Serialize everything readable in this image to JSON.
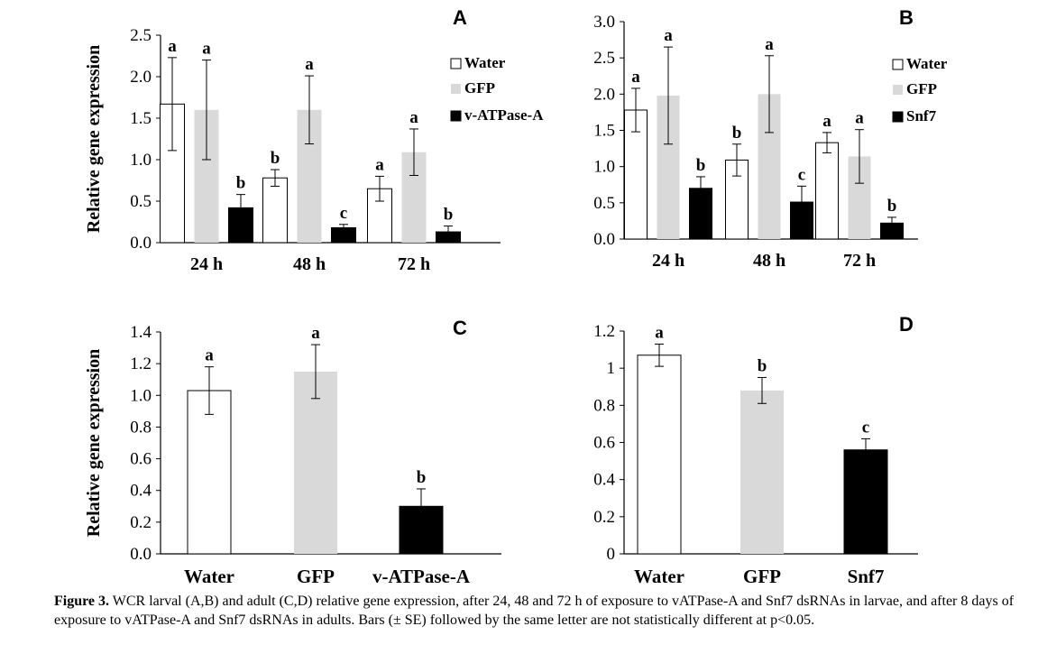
{
  "chart_data": [
    {
      "panel": "A",
      "type": "bar",
      "ylabel": "Relative gene expression",
      "ylim": [
        0,
        2.5
      ],
      "yticks": [
        "0.0",
        "0.5",
        "1.0",
        "1.5",
        "2.0",
        "2.5"
      ],
      "categories": [
        "24 h",
        "48 h",
        "72 h"
      ],
      "legend": "right",
      "series": [
        {
          "name": "Water",
          "color": "#ffffff",
          "values": [
            1.67,
            0.78,
            0.65
          ],
          "errors": [
            0.56,
            0.1,
            0.15
          ],
          "letters": [
            "a",
            "b",
            "a"
          ]
        },
        {
          "name": "GFP",
          "color": "#d9d9d9",
          "values": [
            1.6,
            1.6,
            1.09
          ],
          "errors": [
            0.6,
            0.41,
            0.28
          ],
          "letters": [
            "a",
            "a",
            "a"
          ]
        },
        {
          "name": "v-ATPase-A",
          "color": "#000000",
          "values": [
            0.42,
            0.18,
            0.13
          ],
          "errors": [
            0.16,
            0.04,
            0.07
          ],
          "letters": [
            "b",
            "c",
            "b"
          ]
        }
      ]
    },
    {
      "panel": "B",
      "type": "bar",
      "ylabel": "",
      "ylim": [
        0,
        3.0
      ],
      "yticks": [
        "0.0",
        "0.5",
        "1.0",
        "1.5",
        "2.0",
        "2.5",
        "3.0"
      ],
      "categories": [
        "24 h",
        "48 h",
        "72 h"
      ],
      "legend": "right",
      "series": [
        {
          "name": "Water",
          "color": "#ffffff",
          "values": [
            1.78,
            1.09,
            1.33
          ],
          "errors": [
            0.3,
            0.22,
            0.14
          ],
          "letters": [
            "a",
            "b",
            "a"
          ]
        },
        {
          "name": "GFP",
          "color": "#d9d9d9",
          "values": [
            1.98,
            2.0,
            1.14
          ],
          "errors": [
            0.67,
            0.53,
            0.37
          ],
          "letters": [
            "a",
            "a",
            "a"
          ]
        },
        {
          "name": "Snf7",
          "color": "#000000",
          "values": [
            0.7,
            0.51,
            0.22
          ],
          "errors": [
            0.16,
            0.22,
            0.08
          ],
          "letters": [
            "b",
            "c",
            "b"
          ]
        }
      ]
    },
    {
      "panel": "C",
      "type": "bar",
      "ylabel": "Relative gene expression",
      "ylim": [
        0,
        1.4
      ],
      "yticks": [
        "0.0",
        "0.2",
        "0.4",
        "0.6",
        "0.8",
        "1.0",
        "1.2",
        "1.4"
      ],
      "categories": [
        "Water",
        "GFP",
        "v-ATPase-A"
      ],
      "values": [
        1.03,
        1.15,
        0.3
      ],
      "errors": [
        0.15,
        0.17,
        0.11
      ],
      "letters": [
        "a",
        "a",
        "b"
      ],
      "colors": [
        "#ffffff",
        "#d9d9d9",
        "#000000"
      ]
    },
    {
      "panel": "D",
      "type": "bar",
      "ylabel": "",
      "ylim": [
        0,
        1.2
      ],
      "yticks": [
        "0",
        "0.2",
        "0.4",
        "0.6",
        "0.8",
        "1",
        "1.2"
      ],
      "categories": [
        "Water",
        "GFP",
        "Snf7"
      ],
      "values": [
        1.07,
        0.88,
        0.56
      ],
      "errors": [
        0.06,
        0.07,
        0.06
      ],
      "letters": [
        "a",
        "b",
        "c"
      ],
      "colors": [
        "#ffffff",
        "#d9d9d9",
        "#000000"
      ]
    }
  ],
  "caption": {
    "label": "Figure 3.",
    "text": " WCR larval (A,B) and adult (C,D) relative gene expression, after 24, 48 and 72 h of exposure to vATPase-A and Snf7 dsRNAs in larvae, and after 8 days of exposure to vATPase-A and Snf7 dsRNAs in adults. Bars (± SE) followed by the same letter are not statistically different at p<0.05."
  }
}
